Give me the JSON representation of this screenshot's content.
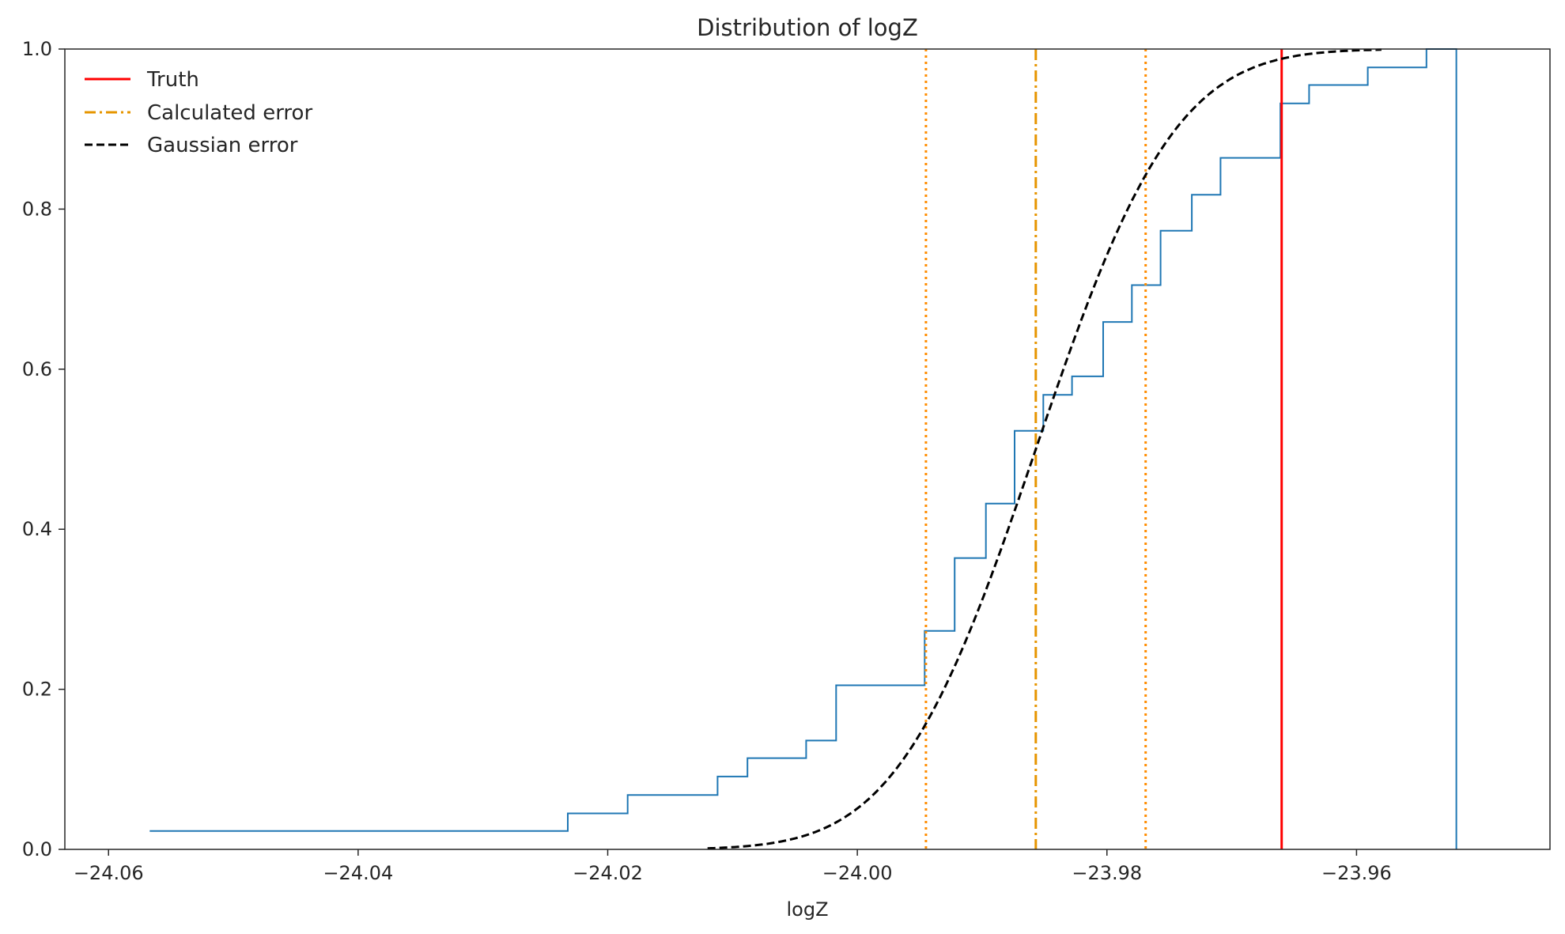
{
  "chart_data": {
    "type": "line",
    "title": "Distribution of logZ",
    "xlabel": "logZ",
    "ylabel": "",
    "xlim": [
      -24.0635,
      -23.9445
    ],
    "ylim": [
      0,
      1
    ],
    "xticks": [
      -24.06,
      -24.04,
      -24.02,
      -24.0,
      -23.98,
      -23.96
    ],
    "xtick_labels": [
      "−24.06",
      "−24.04",
      "−24.02",
      "−24.00",
      "−23.98",
      "−23.96"
    ],
    "yticks": [
      0,
      0.2,
      0.4,
      0.6,
      0.8,
      1.0
    ],
    "ytick_labels": [
      "0.0",
      "0.2",
      "0.4",
      "0.6",
      "0.8",
      "1.0"
    ],
    "grid": false,
    "legend_position": "top-left",
    "legend": [
      {
        "label": "Truth",
        "color": "#ff0000",
        "style": "solid"
      },
      {
        "label": "Calculated error",
        "color": "#e69500",
        "style": "dashdot"
      },
      {
        "label": "Gaussian error",
        "color": "#000000",
        "style": "dashed"
      }
    ],
    "ecdf": {
      "color": "#1f77b4",
      "x": [
        -24.0567,
        -24.0232,
        -24.0184,
        -24.0112,
        -24.0088,
        -24.0041,
        -24.0017,
        -23.9946,
        -23.9922,
        -23.9897,
        -23.9874,
        -23.9851,
        -23.9828,
        -23.9803,
        -23.978,
        -23.9757,
        -23.9732,
        -23.9709,
        -23.9661,
        -23.9638,
        -23.9591,
        -23.9544,
        -23.952
      ],
      "y": [
        0.023,
        0.045,
        0.068,
        0.091,
        0.114,
        0.136,
        0.205,
        0.273,
        0.364,
        0.432,
        0.523,
        0.568,
        0.591,
        0.659,
        0.705,
        0.773,
        0.818,
        0.864,
        0.932,
        0.955,
        0.977,
        1.0,
        1.0
      ],
      "end_drop_x": -23.952
    },
    "gaussian": {
      "color": "#000000",
      "mean": -23.9857,
      "sigma": 0.00875,
      "x_range": [
        -24.012,
        -23.958
      ]
    },
    "vlines": [
      {
        "name": "truth",
        "x": -23.966,
        "color": "#ff0000",
        "style": "solid"
      },
      {
        "name": "calculated-mean",
        "x": -23.9857,
        "color": "#e69500",
        "style": "dashdot"
      },
      {
        "name": "calculated-lower",
        "x": -23.9945,
        "color": "#ff8c00",
        "style": "dotted"
      },
      {
        "name": "calculated-upper",
        "x": -23.9769,
        "color": "#ff8c00",
        "style": "dotted"
      }
    ]
  }
}
